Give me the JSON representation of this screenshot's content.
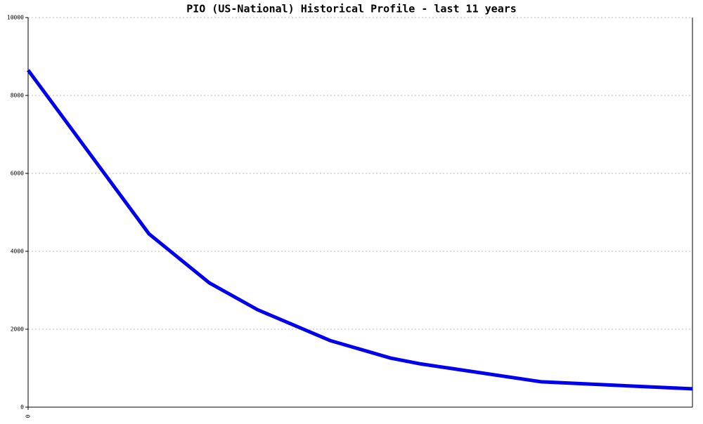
{
  "chart_data": {
    "type": "line",
    "title": "PIO (US-National) Historical Profile - last 11 years",
    "x": [
      0,
      2,
      3,
      3.8,
      5,
      6,
      6.5,
      8.5,
      11
    ],
    "series": [
      {
        "name": "PIO",
        "color": "#0000ee",
        "values": [
          8650,
          4450,
          3190,
          2500,
          1710,
          1260,
          1110,
          650,
          470
        ]
      }
    ],
    "xlim": [
      0,
      11
    ],
    "xticks": [
      0
    ],
    "ylim": [
      0,
      10000
    ],
    "yticks": [
      0,
      2000,
      4000,
      6000,
      8000,
      10000
    ],
    "grid": true
  }
}
